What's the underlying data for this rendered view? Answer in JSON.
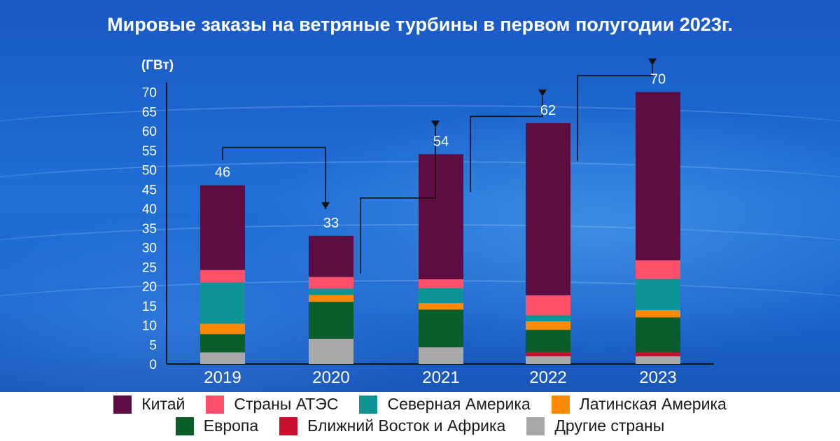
{
  "chart_data": {
    "type": "bar",
    "stacked": true,
    "title": "Мировые заказы на ветряные турбины в первом полугодии 2023г.",
    "ylabel": "(ГВт)",
    "xlabel": "",
    "ylim": [
      0,
      72
    ],
    "yticks": [
      0,
      5,
      10,
      15,
      20,
      25,
      30,
      35,
      40,
      45,
      50,
      55,
      60,
      65,
      70
    ],
    "categories": [
      "2019",
      "2020",
      "2021",
      "2022",
      "2023"
    ],
    "totals": [
      46,
      33,
      54,
      62,
      70
    ],
    "series": [
      {
        "name": "Другие страны",
        "color": "#a8a8a8",
        "values": [
          3,
          6.5,
          4.3,
          2,
          2
        ]
      },
      {
        "name": "Ближний Восток и Африка",
        "color": "#c8102e",
        "values": [
          0,
          0,
          0,
          1,
          1
        ]
      },
      {
        "name": "Европа",
        "color": "#0a5e2a",
        "values": [
          4.7,
          9.5,
          9.7,
          5.8,
          9
        ]
      },
      {
        "name": "Латинская Америка",
        "color": "#ff8a00",
        "values": [
          2.7,
          1.8,
          1.7,
          2.2,
          1.9
        ]
      },
      {
        "name": "Северная Америка",
        "color": "#0e9494",
        "values": [
          10.6,
          1.6,
          3.8,
          1.5,
          8
        ]
      },
      {
        "name": "Страны АТЭС",
        "color": "#ff4f6a",
        "values": [
          3.2,
          3,
          2.3,
          5.2,
          4.8
        ]
      },
      {
        "name": "Китай",
        "color": "#5e0d43",
        "values": [
          21.8,
          10.6,
          32.2,
          44.3,
          43.3
        ]
      }
    ],
    "legend": {
      "position": "bottom",
      "rows": [
        [
          "Китай",
          "Страны АТЭС",
          "Северная Америка",
          "Латинская Америка"
        ],
        [
          "Европа",
          "Ближний Восток и Африка",
          "Другие страны"
        ]
      ]
    },
    "grid": false
  }
}
